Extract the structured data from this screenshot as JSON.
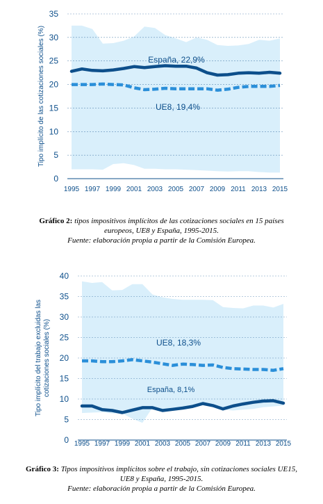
{
  "chart_data": [
    {
      "type": "line",
      "ylabel": "Tipo implícito de las cotizaciones sociales (%)",
      "xlabel": "",
      "ylim": [
        0,
        35
      ],
      "yticks": [
        0,
        5,
        10,
        15,
        20,
        25,
        30,
        35
      ],
      "x_tick_labels": [
        "1995",
        "1997",
        "1999",
        "2001",
        "2003",
        "2005",
        "2007",
        "2009",
        "2011",
        "2013",
        "2015"
      ],
      "x": [
        1995,
        1996,
        1997,
        1998,
        1999,
        2000,
        2001,
        2002,
        2003,
        2004,
        2005,
        2006,
        2007,
        2008,
        2009,
        2010,
        2011,
        2012,
        2013,
        2014,
        2015
      ],
      "grid": "horizontal dashed",
      "band": {
        "upper": [
          32.5,
          32.5,
          31.8,
          28.7,
          28.8,
          29.3,
          30.2,
          32.3,
          32.0,
          30.5,
          29.8,
          29.0,
          30.0,
          29.5,
          28.4,
          28.2,
          28.3,
          28.6,
          29.5,
          29.3,
          29.8
        ],
        "lower": [
          2.0,
          2.0,
          2.0,
          1.9,
          3.1,
          3.3,
          2.9,
          2.1,
          2.1,
          2.0,
          2.0,
          1.9,
          1.8,
          1.7,
          1.6,
          1.5,
          1.6,
          1.6,
          1.4,
          1.3,
          1.3
        ]
      },
      "series": [
        {
          "name": "España, 22,9%",
          "style": "solid",
          "values": [
            22.8,
            23.3,
            23.0,
            22.9,
            23.1,
            23.4,
            23.8,
            23.6,
            23.8,
            24.0,
            23.9,
            23.9,
            23.5,
            22.5,
            22.0,
            22.1,
            22.4,
            22.5,
            22.4,
            22.6,
            22.4
          ]
        },
        {
          "name": "UE8, 19,4%",
          "style": "dashed",
          "values": [
            20.0,
            20.0,
            20.0,
            20.1,
            20.0,
            19.9,
            19.3,
            18.9,
            19.0,
            19.2,
            19.1,
            19.1,
            19.1,
            19.1,
            18.8,
            19.0,
            19.4,
            19.6,
            19.6,
            19.6,
            19.8
          ]
        }
      ]
    },
    {
      "type": "line",
      "ylabel": "Tipo implícito del trabajo excluidas las cotizaciones sociales (%)",
      "xlabel": "",
      "ylim": [
        0,
        40
      ],
      "yticks": [
        0,
        5,
        10,
        15,
        20,
        25,
        30,
        35,
        40
      ],
      "x_tick_labels": [
        "1995",
        "1997",
        "1999",
        "2001",
        "2003",
        "2005",
        "2007",
        "2009",
        "2011",
        "2013",
        "2015"
      ],
      "x": [
        1995,
        1996,
        1997,
        1998,
        1999,
        2000,
        2001,
        2002,
        2003,
        2004,
        2005,
        2006,
        2007,
        2008,
        2009,
        2010,
        2011,
        2012,
        2013,
        2014,
        2015
      ],
      "grid": "horizontal dashed",
      "band": {
        "upper": [
          38.7,
          38.3,
          38.5,
          36.5,
          36.6,
          38.0,
          38.0,
          35.5,
          34.8,
          34.4,
          34.2,
          34.2,
          34.2,
          34.1,
          32.4,
          32.2,
          32.1,
          32.8,
          32.8,
          32.3,
          33.2
        ],
        "lower": [
          6.6,
          6.7,
          6.8,
          6.5,
          6.5,
          5.2,
          4.2,
          7.9,
          7.3,
          7.5,
          7.7,
          8.1,
          8.6,
          8.4,
          7.4,
          7.2,
          7.4,
          7.6,
          8.0,
          8.2,
          8.4
        ]
      },
      "series": [
        {
          "name": "UE8, 18,3%",
          "style": "dashed",
          "values": [
            19.3,
            19.3,
            19.1,
            19.1,
            19.3,
            19.6,
            19.3,
            19.0,
            18.6,
            18.2,
            18.5,
            18.4,
            18.2,
            18.3,
            17.7,
            17.4,
            17.3,
            17.2,
            17.2,
            17.0,
            17.4
          ]
        },
        {
          "name": "España, 8,1%",
          "style": "solid",
          "values": [
            8.3,
            8.3,
            7.4,
            7.2,
            6.7,
            7.3,
            7.9,
            7.9,
            7.2,
            7.5,
            7.8,
            8.2,
            8.9,
            8.4,
            7.6,
            8.3,
            8.8,
            9.2,
            9.5,
            9.6,
            9.0
          ]
        }
      ]
    }
  ],
  "colors": {
    "band": "#d9effb",
    "espana_line": "#0d4f8b",
    "ue8_line": "#2b8fd9",
    "axis_text": "#0d4f8b",
    "grid": "#0d4f8b"
  },
  "captions": [
    {
      "label": "Gráfico 2:",
      "line1": " tipos impositivos implícitos de las cotizaciones sociales en 15 países",
      "line2": "europeos, UE8 y España, 1995-2015.",
      "source": "Fuente: elaboración propia a partir de la Comisión Europea."
    },
    {
      "label": "Gráfico 3:",
      "line1": " Tipos impositivos implícitos sobre el trabajo, sin cotizaciones sociales UE15,",
      "line2": "UE8 y España, 1995-2015.",
      "source": "Fuente: elaboración propia a partir de la Comisión Europea."
    }
  ]
}
